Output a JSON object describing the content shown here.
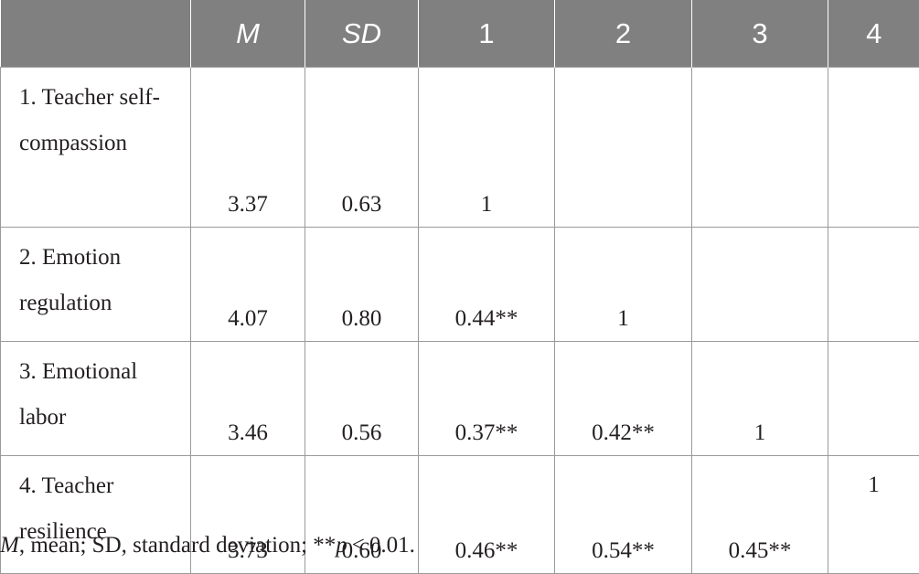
{
  "header": {
    "blank": "",
    "col_m": "M",
    "col_sd": "SD",
    "col_1": "1",
    "col_2": "2",
    "col_3": "3",
    "col_4": "4"
  },
  "rows": [
    {
      "label": "1. Teacher self-compassion",
      "m": "3.37",
      "sd": "0.63",
      "c1": "1",
      "c2": "",
      "c3": "",
      "c4": ""
    },
    {
      "label": "2. Emotion regulation",
      "m": "4.07",
      "sd": "0.80",
      "c1": "0.44**",
      "c2": "1",
      "c3": "",
      "c4": ""
    },
    {
      "label": "3. Emotional labor",
      "m": "3.46",
      "sd": "0.56",
      "c1": "0.37**",
      "c2": "0.42**",
      "c3": "1",
      "c4": ""
    },
    {
      "label": "4. Teacher resilience",
      "m": "3.73",
      "sd": "0.60",
      "c1": "0.46**",
      "c2": "0.54**",
      "c3": "0.45**",
      "c4": "1"
    }
  ],
  "footnote": {
    "m_symbol": "M",
    "m_text": ", mean; SD, standard deviation; **",
    "p_symbol": "p",
    "p_text": " < 0.01."
  }
}
